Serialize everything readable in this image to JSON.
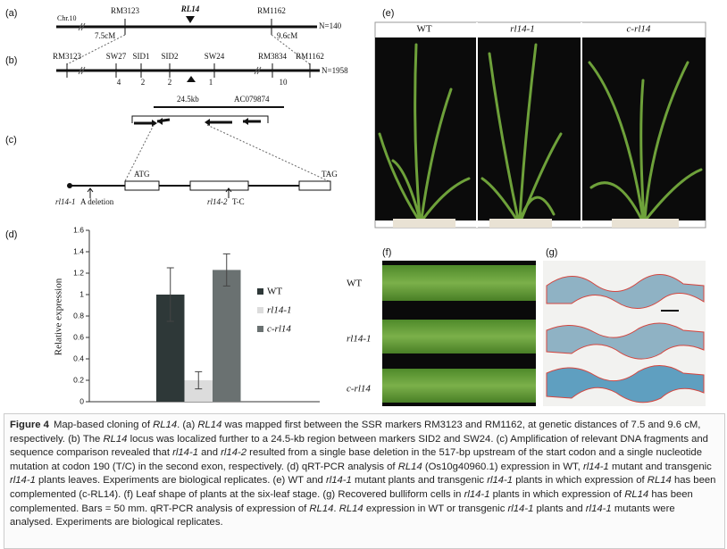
{
  "panels": {
    "a": {
      "label": "(a)",
      "chr": "Chr.10",
      "m1": "RM3123",
      "gene": "RL14",
      "m2": "RM1162",
      "n": "N=140",
      "d1": "7.5cM",
      "d2": "9.6cM"
    },
    "b": {
      "label": "(b)",
      "markers": [
        "RM3123",
        "SW27",
        "SID1",
        "SID2",
        "SW24",
        "RM3834",
        "RM1162"
      ],
      "counts": [
        "4",
        "2",
        "2",
        "1",
        "10"
      ],
      "n": "N=1958",
      "size": "24.5kb",
      "bac": "AC079874"
    },
    "c": {
      "label": "(c)",
      "start": "ATG",
      "stop": "TAG",
      "mut1": "rl14-1",
      "mut1_note": "A deletion",
      "mut2": "rl14-2",
      "mut2_note": "T-C"
    },
    "d": {
      "label": "(d)"
    },
    "e": {
      "label": "(e)",
      "plants": [
        "WT",
        "rl14-1",
        "c-rl14"
      ]
    },
    "f": {
      "label": "(f)",
      "rows": [
        "WT",
        "rl14-1",
        "c-rl14"
      ]
    },
    "g": {
      "label": "(g)"
    }
  },
  "chart_data": {
    "type": "bar",
    "ylabel": "Relative expression",
    "ylim": [
      0,
      1.6
    ],
    "yticks": [
      0,
      0.2,
      0.4,
      0.6,
      0.8,
      1,
      1.2,
      1.4,
      1.6
    ],
    "series": [
      {
        "name": "WT",
        "color": "#2e3838",
        "values": [
          1.0
        ],
        "errors": [
          0.25
        ]
      },
      {
        "name": "rl14-1",
        "color": "#dcdcdc",
        "values": [
          0.2
        ],
        "errors": [
          0.08
        ]
      },
      {
        "name": "c-rl14",
        "color": "#6a7171",
        "values": [
          1.23
        ],
        "errors": [
          0.15
        ]
      }
    ]
  },
  "caption": {
    "label": "Figure 4",
    "runs": [
      "Map-based cloning of ",
      "RL14",
      ". (a) ",
      "RL14",
      " was mapped first between the SSR markers RM3123 and RM1162, at genetic distances of 7.5 and 9.6 cM, respectively. (b) The ",
      "RL14",
      " locus was localized further to a 24.5-kb region between markers SID2 and SW24. (c) Amplification of relevant DNA fragments and sequence comparison revealed that ",
      "rl14-1",
      " and ",
      "rl14-2",
      " resulted from a single base deletion in the 517-bp upstream of the start codon and a single nucleotide mutation at codon 190 (T/C) in the second exon, respectively. (d) qRT-PCR analysis of ",
      "RL14",
      " (Os10g40960.1) expression in WT, ",
      "rl14-1",
      " mutant and transgenic ",
      "rl14-1",
      " plants leaves. Experiments are biological replicates. (e) WT and ",
      "rl14-1",
      " mutant plants and transgenic ",
      "rl14-1",
      " plants in which expression of ",
      "RL14",
      " has been complemented (c-RL14). (f) Leaf shape of plants at the six-leaf stage. (g) Recovered bulliform cells in ",
      "rl14-1",
      " plants in which expression of ",
      "RL14",
      " has been complemented. Bars = 50 mm. qRT-PCR analysis of expression of ",
      "RL14",
      ". ",
      "RL14",
      " expression in WT or transgenic ",
      "rl14-1",
      " plants and ",
      "rl14-1",
      " mutants were analysed. Experiments are biological replicates."
    ]
  }
}
